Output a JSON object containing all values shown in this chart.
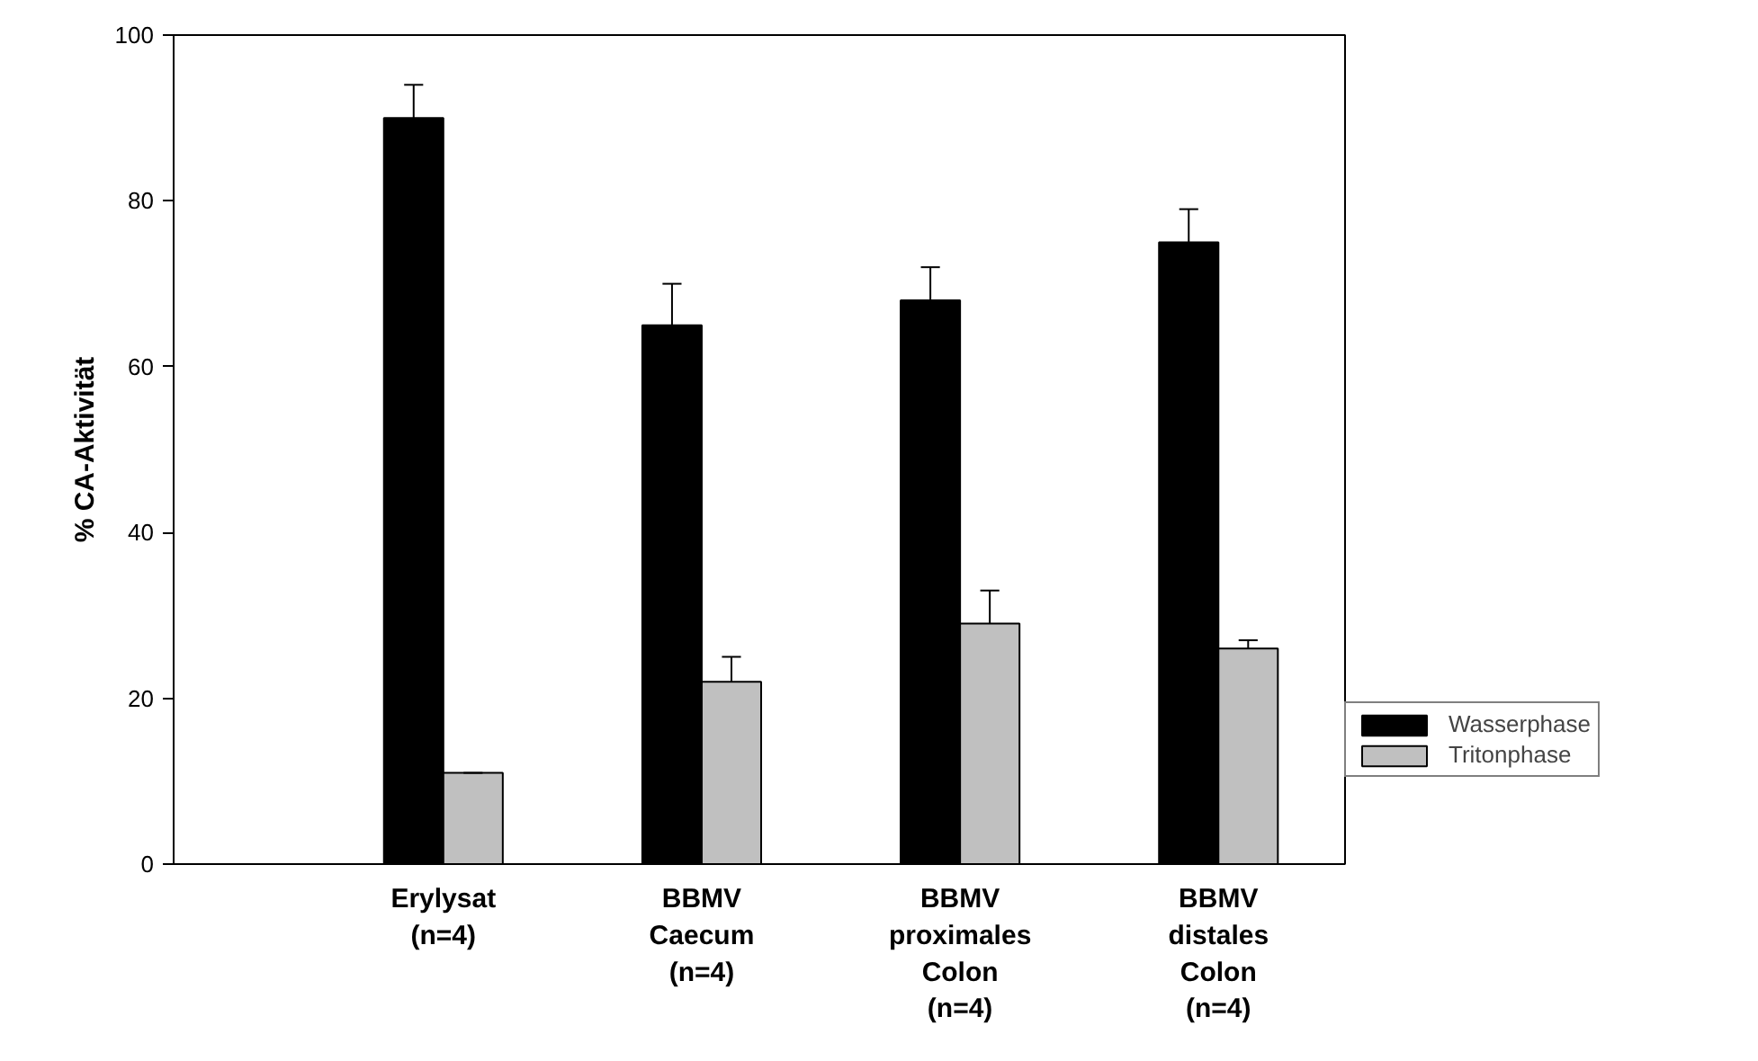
{
  "chart_data": {
    "type": "bar",
    "ylabel": "% CA-Aktivität",
    "categories": [
      "Erylysat\n(n=4)",
      "BBMV\nCaecum\n(n=4)",
      "BBMV\nproximales\nColon\n(n=4)",
      "BBMV\ndistales\nColon\n(n=4)"
    ],
    "series": [
      {
        "name": "Wasserphase",
        "color": "#000000",
        "values": [
          90,
          65,
          68,
          75
        ],
        "errors": [
          [
            90,
            94
          ],
          [
            65,
            70
          ],
          [
            68,
            72
          ],
          [
            75,
            79
          ]
        ]
      },
      {
        "name": "Tritonphase",
        "color": "#c0c0c0",
        "values": [
          11,
          22,
          29,
          26
        ],
        "errors": [
          [
            11,
            11
          ],
          [
            22,
            25
          ],
          [
            29,
            33
          ],
          [
            26,
            27
          ]
        ]
      }
    ],
    "ylim": [
      0,
      100
    ],
    "yticks": [
      0,
      20,
      40,
      60,
      80,
      100
    ],
    "grid": false,
    "legend": "bottom right"
  }
}
